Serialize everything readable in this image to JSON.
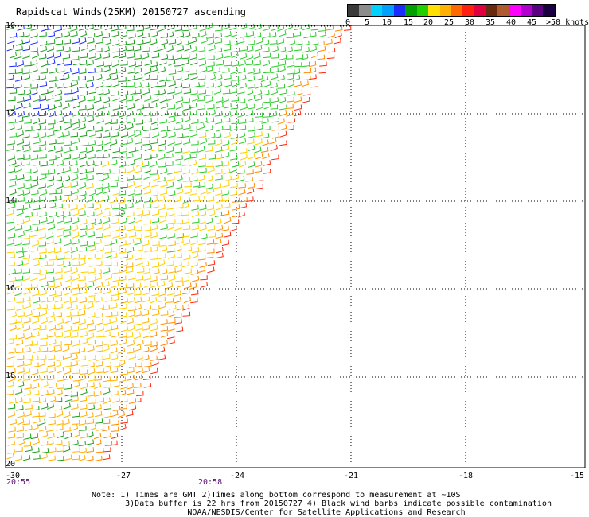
{
  "title": "Rapidscat Winds(25KM) 20150727 ascending",
  "legend": {
    "colors": [
      "#3a3a3a",
      "#8c8c8c",
      "#00d2ff",
      "#00a0ff",
      "#1a2cff",
      "#00a000",
      "#22d000",
      "#ffe000",
      "#ffb000",
      "#ff6a00",
      "#ff2010",
      "#e00040",
      "#6a2a10",
      "#b05a30",
      "#ff00ff",
      "#b000d0",
      "#5a0080",
      "#1a0040"
    ],
    "labels": [
      "0",
      "5",
      "10",
      "15",
      "20",
      "25",
      "30",
      "35",
      "40",
      "45",
      ">50 knots"
    ]
  },
  "axes": {
    "lat_labels": [
      "10",
      "12",
      "14",
      "16",
      "18",
      "20"
    ],
    "lon_labels": [
      "-30",
      "-27",
      "-24",
      "-21",
      "-18",
      "-15"
    ],
    "time_labels": [
      "20:55",
      "20:58"
    ]
  },
  "notes": [
    "Note: 1) Times are GMT 2)Times along bottom correspond to measurement at ~10S",
    "       3)Data buffer is 22 hrs from 20150727 4) Black wind barbs indicate possible contamination",
    "                    NOAA/NESDIS/Center for Satellite Applications and Research"
  ]
}
